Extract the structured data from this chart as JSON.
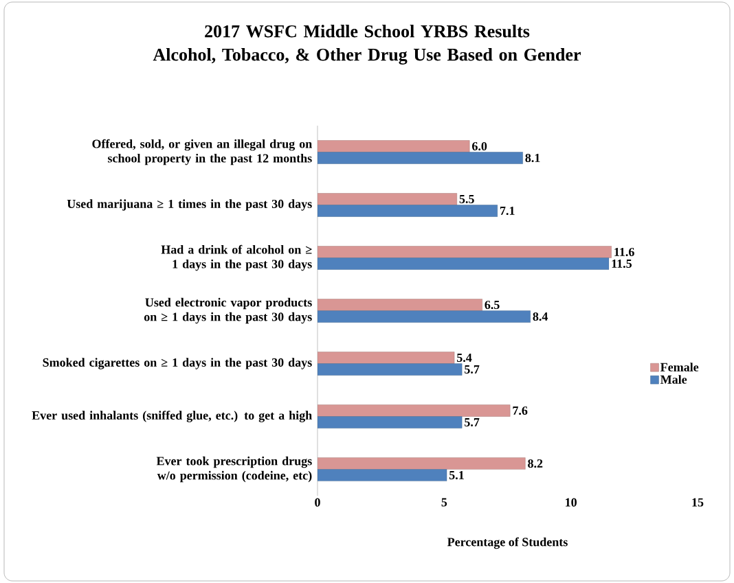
{
  "chart_data": {
    "type": "bar",
    "orientation": "horizontal",
    "title": "2017 WSFC Middle School YRBS Results\nAlcohol, Tobacco, & Other Drug Use Based on Gender",
    "categories": [
      "Offered, sold, or given an illegal drug on school property in the past 12 months",
      "Used marijuana ≥ 1 times in the past 30 days",
      "Had a drink of alcohol on ≥ 1 days in the past 30 days",
      "Used electronic vapor products on ≥ 1 days in the past 30 days",
      "Smoked cigarettes on ≥ 1 days in the past 30 days",
      "Ever used inhalants (sniffed glue, etc.) to get a high",
      "Ever took prescription drugs w/o permission (codeine, etc)"
    ],
    "series": [
      {
        "name": "Female",
        "color": "#d99694",
        "values": [
          6.0,
          5.5,
          11.6,
          6.5,
          5.4,
          7.6,
          8.2
        ],
        "value_labels": [
          "6.0",
          "5.5",
          "11.6",
          "6.5",
          "5.4",
          "7.6",
          "8.2"
        ]
      },
      {
        "name": "Male",
        "color": "#4f81bd",
        "values": [
          8.1,
          7.1,
          11.5,
          8.4,
          5.7,
          5.7,
          5.1
        ],
        "value_labels": [
          "8.1",
          "7.1",
          "11.5",
          "8.4",
          "5.7",
          "5.7",
          "5.1"
        ]
      }
    ],
    "xlim": [
      0,
      15
    ],
    "xticks": [
      0,
      5,
      10,
      15
    ],
    "xlabel": "Percentage of Students",
    "legend": "right"
  }
}
